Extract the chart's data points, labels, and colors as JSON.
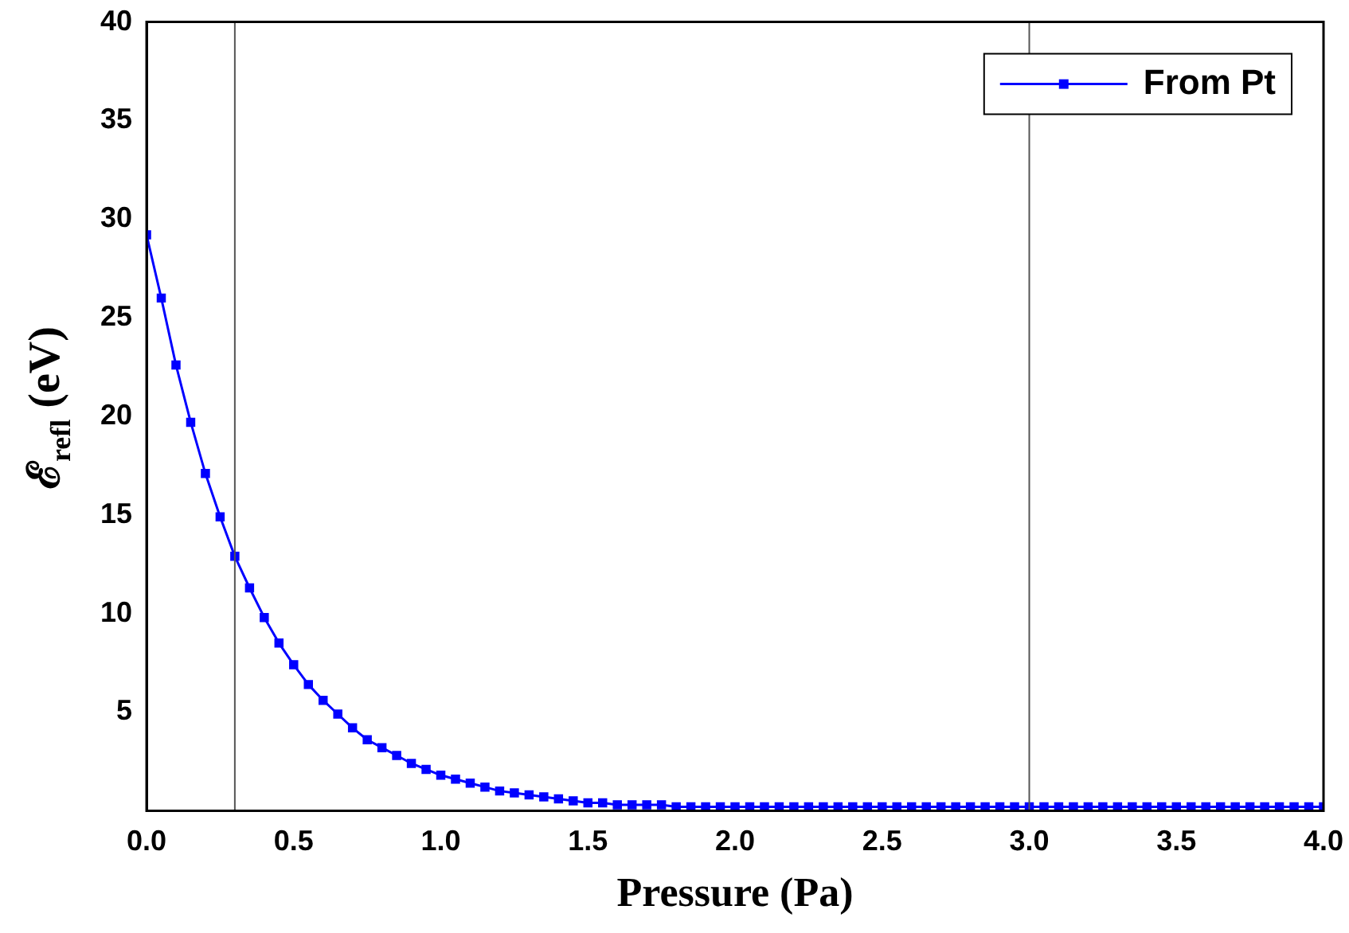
{
  "chart_data": {
    "type": "line",
    "xlabel": "Pressure (Pa)",
    "ylabel": "ℰ$_{refl}$ (eV)",
    "xlim": [
      0,
      4
    ],
    "ylim": [
      0,
      40
    ],
    "xticks": [
      {
        "value": 0,
        "label": "0.0"
      },
      {
        "value": 0.5,
        "label": "0.5"
      },
      {
        "value": 1,
        "label": "1.0"
      },
      {
        "value": 1.5,
        "label": "1.5"
      },
      {
        "value": 2,
        "label": "2.0"
      },
      {
        "value": 2.5,
        "label": "2.5"
      },
      {
        "value": 3,
        "label": "3.0"
      },
      {
        "value": 3.5,
        "label": "3.5"
      },
      {
        "value": 4,
        "label": "4.0"
      }
    ],
    "yticks": [
      5,
      10,
      15,
      20,
      25,
      30,
      35,
      40
    ],
    "grid": false,
    "legend": "top right",
    "marker": "square",
    "line_style": "solid",
    "ref_lines": [
      {
        "axis": "x",
        "value": 0.3,
        "color": "#555555"
      },
      {
        "axis": "x",
        "value": 3,
        "color": "#555555"
      }
    ],
    "x": [
      0,
      0.05,
      0.1,
      0.15,
      0.2,
      0.25,
      0.3,
      0.35,
      0.4,
      0.45,
      0.5,
      0.55,
      0.6,
      0.65,
      0.7,
      0.75,
      0.8,
      0.85,
      0.9,
      0.95,
      1,
      1.05,
      1.1,
      1.15,
      1.2,
      1.25,
      1.3,
      1.35,
      1.4,
      1.45,
      1.5,
      1.55,
      1.6,
      1.65,
      1.7,
      1.75,
      1.8,
      1.85,
      1.9,
      1.95,
      2,
      2.05,
      2.1,
      2.15,
      2.2,
      2.25,
      2.3,
      2.35,
      2.4,
      2.45,
      2.5,
      2.55,
      2.6,
      2.65,
      2.7,
      2.75,
      2.8,
      2.85,
      2.9,
      2.95,
      3,
      3.05,
      3.1,
      3.15,
      3.2,
      3.25,
      3.3,
      3.35,
      3.4,
      3.45,
      3.5,
      3.55,
      3.6,
      3.65,
      3.7,
      3.75,
      3.8,
      3.85,
      3.9,
      3.95,
      4
    ],
    "series": [
      {
        "name": "From Pt",
        "color": "#0000ff",
        "values": [
          29.2,
          26.0,
          22.6,
          19.7,
          17.1,
          14.9,
          12.9,
          11.3,
          9.8,
          8.5,
          7.4,
          6.4,
          5.6,
          4.9,
          4.2,
          3.6,
          3.2,
          2.8,
          2.4,
          2.1,
          1.8,
          1.6,
          1.4,
          1.2,
          1.0,
          0.9,
          0.8,
          0.7,
          0.6,
          0.5,
          0.4,
          0.4,
          0.3,
          0.3,
          0.3,
          0.3,
          0.2,
          0.2,
          0.2,
          0.2,
          0.2,
          0.2,
          0.2,
          0.2,
          0.2,
          0.2,
          0.2,
          0.2,
          0.2,
          0.2,
          0.2,
          0.2,
          0.2,
          0.2,
          0.2,
          0.2,
          0.2,
          0.2,
          0.2,
          0.2,
          0.2,
          0.2,
          0.2,
          0.2,
          0.2,
          0.2,
          0.2,
          0.2,
          0.2,
          0.2,
          0.2,
          0.2,
          0.2,
          0.2,
          0.2,
          0.2,
          0.2,
          0.2,
          0.2,
          0.2,
          0.2
        ]
      }
    ]
  }
}
